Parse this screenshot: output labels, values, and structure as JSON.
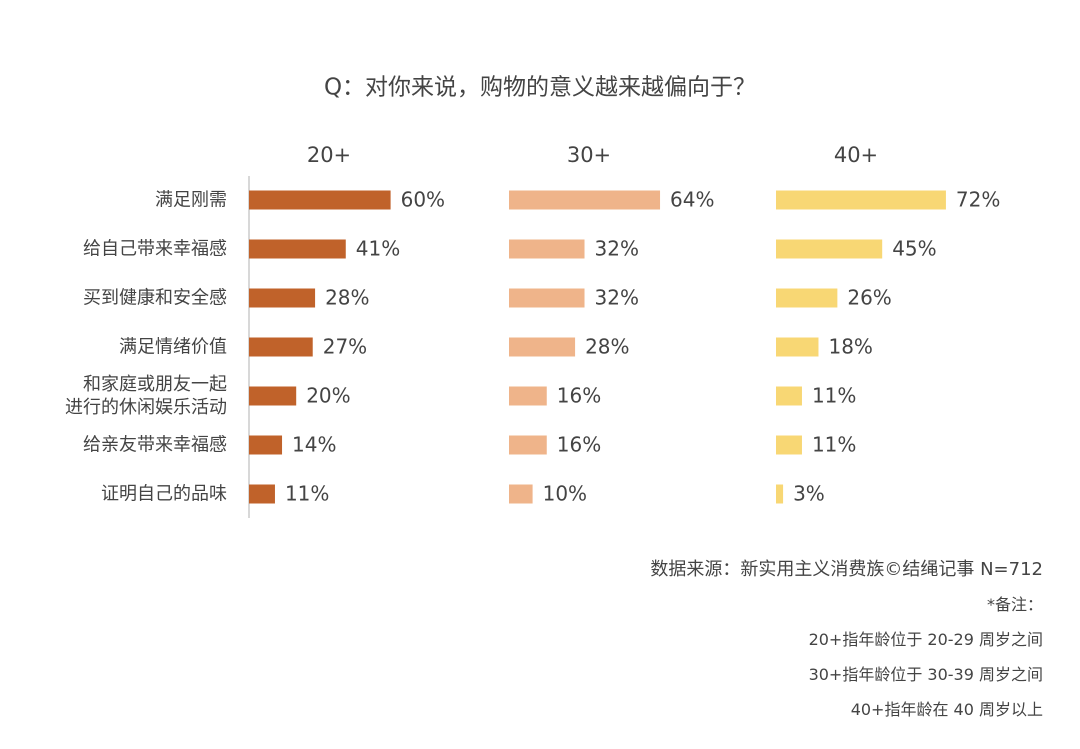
{
  "chart_data": {
    "type": "bar",
    "orientation": "horizontal",
    "title": "Q：对你来说，购物的意义越来越偏向于？",
    "categories": [
      "满足刚需",
      "给自己带来幸福感",
      "买到健康和安全感",
      "满足情绪价值",
      "和家庭或朋友一起\n进行的休闲娱乐活动",
      "给亲友带来幸福感",
      "证明自己的品味"
    ],
    "series": [
      {
        "name": "20+",
        "color": "#c0622a",
        "values": [
          60,
          41,
          28,
          27,
          20,
          14,
          11
        ],
        "value_labels": [
          "60%",
          "41%",
          "28%",
          "27%",
          "20%",
          "14%",
          "11%"
        ]
      },
      {
        "name": "30+",
        "color": "#efb48a",
        "values": [
          64,
          32,
          32,
          28,
          16,
          16,
          10
        ],
        "value_labels": [
          "64%",
          "32%",
          "32%",
          "28%",
          "16%",
          "16%",
          "10%"
        ]
      },
      {
        "name": "40+",
        "color": "#f8d774",
        "values": [
          72,
          45,
          26,
          18,
          11,
          11,
          3
        ],
        "value_labels": [
          "72%",
          "45%",
          "26%",
          "18%",
          "11%",
          "11%",
          "3%"
        ]
      }
    ],
    "source": "数据来源：新实用主义消费族©结绳记事 N=712",
    "notes": [
      "*备注：",
      "20+指年龄位于 20-29 周岁之间",
      "30+指年龄位于 30-39 周岁之间",
      "40+指年龄在 40 周岁以上"
    ]
  }
}
